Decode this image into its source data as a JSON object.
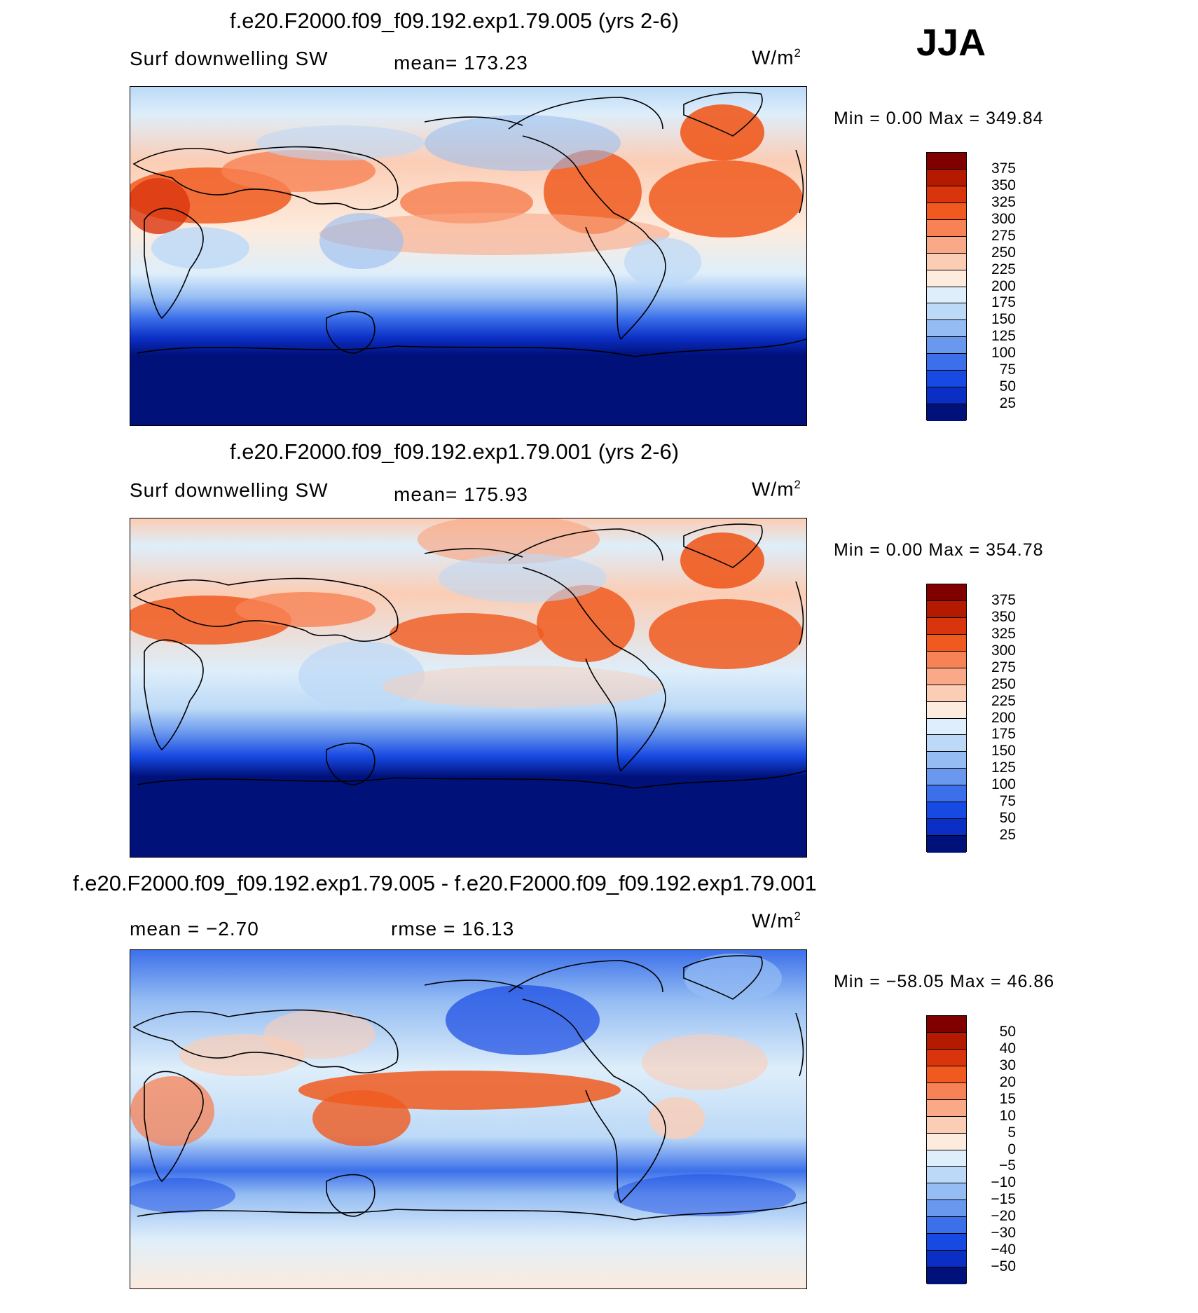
{
  "season": "JJA",
  "panels": [
    {
      "title": "f.e20.F2000.f09_f09.192.exp1.79.005 (yrs 2-6)",
      "variable": "Surf downwelling SW",
      "stat_left": "",
      "stat_mid": "mean=  173.23",
      "units_base": "W/m",
      "units_exp": "2",
      "minmax": "Min =     0.00  Max  =  349.84",
      "colorbar": {
        "labels": [
          "375",
          "350",
          "325",
          "300",
          "275",
          "250",
          "225",
          "200",
          "175",
          "150",
          "125",
          "100",
          "75",
          "50",
          "25"
        ],
        "colors": [
          "#800000",
          "#b31a00",
          "#d9350c",
          "#f05a1e",
          "#f78255",
          "#f9a987",
          "#fbcdb5",
          "#fdebdd",
          "#deeefa",
          "#bcd9f7",
          "#95bdf3",
          "#6a98ee",
          "#3c70ea",
          "#1749e3",
          "#0b2ec4",
          "#00117a"
        ]
      }
    },
    {
      "title": "f.e20.F2000.f09_f09.192.exp1.79.001 (yrs 2-6)",
      "variable": "Surf downwelling SW",
      "stat_left": "",
      "stat_mid": "mean=  175.93",
      "units_base": "W/m",
      "units_exp": "2",
      "minmax": "Min =     0.00  Max  =  354.78",
      "colorbar": {
        "labels": [
          "375",
          "350",
          "325",
          "300",
          "275",
          "250",
          "225",
          "200",
          "175",
          "150",
          "125",
          "100",
          "75",
          "50",
          "25"
        ],
        "colors": [
          "#800000",
          "#b31a00",
          "#d9350c",
          "#f05a1e",
          "#f78255",
          "#f9a987",
          "#fbcdb5",
          "#fdebdd",
          "#deeefa",
          "#bcd9f7",
          "#95bdf3",
          "#6a98ee",
          "#3c70ea",
          "#1749e3",
          "#0b2ec4",
          "#00117a"
        ]
      }
    },
    {
      "title": "f.e20.F2000.f09_f09.192.exp1.79.005 - f.e20.F2000.f09_f09.192.exp1.79.001",
      "variable": "",
      "stat_left": "mean  =   −2.70",
      "stat_mid": "rmse  =    16.13",
      "units_base": "W/m",
      "units_exp": "2",
      "minmax": "Min  =  −58.05  Max  =    46.86",
      "colorbar": {
        "labels": [
          "50",
          "40",
          "30",
          "20",
          "15",
          "10",
          "5",
          "0",
          "−5",
          "−10",
          "−15",
          "−20",
          "−30",
          "−40",
          "−50"
        ],
        "colors": [
          "#800000",
          "#b31a00",
          "#d9350c",
          "#f05a1e",
          "#f78255",
          "#f9a987",
          "#fbcdb5",
          "#fdebdd",
          "#deeefa",
          "#bcd9f7",
          "#95bdf3",
          "#6a98ee",
          "#3c70ea",
          "#1749e3",
          "#0b2ec4",
          "#00117a"
        ]
      }
    }
  ]
}
